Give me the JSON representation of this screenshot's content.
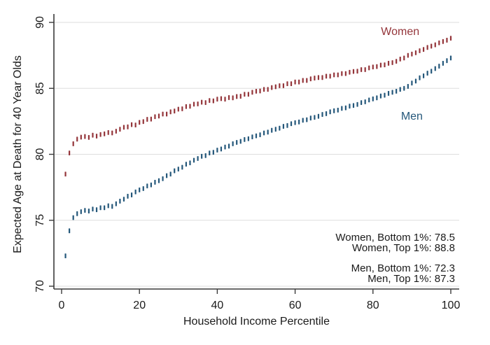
{
  "figure": {
    "background": "#ffffff"
  },
  "chart_data": {
    "type": "scatter",
    "marker_style": "vertical-dash",
    "title": "",
    "xlabel": "Household Income Percentile",
    "ylabel": "Expected Age at Death for 40 Year Olds",
    "xlim": [
      0,
      100
    ],
    "ylim": [
      70,
      90
    ],
    "x_ticks": [
      0,
      20,
      40,
      60,
      80,
      100
    ],
    "y_ticks": [
      70,
      75,
      80,
      85,
      90
    ],
    "grid": "horizontal-only",
    "legend_position": "inline-series-labels",
    "colors": {
      "women": "#94353A",
      "men": "#24577A",
      "axis": "#3a3a3a",
      "gridline": "#dedede",
      "text": "#1a1a1a"
    },
    "series": [
      {
        "name": "Women",
        "color": "#94353A",
        "label_anchor": {
          "x": 87,
          "y": 89.3
        },
        "x": [
          1,
          2,
          3,
          4,
          5,
          6,
          7,
          8,
          9,
          10,
          11,
          12,
          13,
          14,
          15,
          16,
          17,
          18,
          19,
          20,
          21,
          22,
          23,
          24,
          25,
          26,
          27,
          28,
          29,
          30,
          31,
          32,
          33,
          34,
          35,
          36,
          37,
          38,
          39,
          40,
          41,
          42,
          43,
          44,
          45,
          46,
          47,
          48,
          49,
          50,
          51,
          52,
          53,
          54,
          55,
          56,
          57,
          58,
          59,
          60,
          61,
          62,
          63,
          64,
          65,
          66,
          67,
          68,
          69,
          70,
          71,
          72,
          73,
          74,
          75,
          76,
          77,
          78,
          79,
          80,
          81,
          82,
          83,
          84,
          85,
          86,
          87,
          88,
          89,
          90,
          91,
          92,
          93,
          94,
          95,
          96,
          97,
          98,
          99,
          100
        ],
        "values": [
          78.5,
          80.1,
          80.8,
          81.15,
          81.3,
          81.35,
          81.28,
          81.45,
          81.38,
          81.5,
          81.55,
          81.65,
          81.62,
          81.75,
          81.9,
          82.05,
          82.08,
          82.25,
          82.22,
          82.42,
          82.48,
          82.65,
          82.67,
          82.85,
          82.9,
          83.05,
          83.05,
          83.22,
          83.28,
          83.42,
          83.45,
          83.62,
          83.64,
          83.8,
          83.82,
          83.95,
          83.92,
          84.08,
          84.05,
          84.18,
          84.22,
          84.18,
          84.3,
          84.28,
          84.38,
          84.4,
          84.55,
          84.55,
          84.7,
          84.78,
          84.8,
          84.92,
          84.92,
          85.06,
          85.12,
          85.2,
          85.2,
          85.35,
          85.35,
          85.48,
          85.48,
          85.6,
          85.6,
          85.72,
          85.78,
          85.82,
          85.82,
          85.92,
          85.92,
          86.02,
          86.02,
          86.12,
          86.12,
          86.22,
          86.28,
          86.3,
          86.42,
          86.42,
          86.55,
          86.62,
          86.65,
          86.76,
          86.78,
          86.9,
          86.95,
          87.05,
          87.22,
          87.3,
          87.5,
          87.6,
          87.7,
          87.85,
          87.95,
          88.1,
          88.2,
          88.3,
          88.45,
          88.55,
          88.65,
          88.8
        ]
      },
      {
        "name": "Men",
        "color": "#24577A",
        "label_anchor": {
          "x": 90,
          "y": 82.9
        },
        "x": [
          1,
          2,
          3,
          4,
          5,
          6,
          7,
          8,
          9,
          10,
          11,
          12,
          13,
          14,
          15,
          16,
          17,
          18,
          19,
          20,
          21,
          22,
          23,
          24,
          25,
          26,
          27,
          28,
          29,
          30,
          31,
          32,
          33,
          34,
          35,
          36,
          37,
          38,
          39,
          40,
          41,
          42,
          43,
          44,
          45,
          46,
          47,
          48,
          49,
          50,
          51,
          52,
          53,
          54,
          55,
          56,
          57,
          58,
          59,
          60,
          61,
          62,
          63,
          64,
          65,
          66,
          67,
          68,
          69,
          70,
          71,
          72,
          73,
          74,
          75,
          76,
          77,
          78,
          79,
          80,
          81,
          82,
          83,
          84,
          85,
          86,
          87,
          88,
          89,
          90,
          91,
          92,
          93,
          94,
          95,
          96,
          97,
          98,
          99,
          100
        ],
        "values": [
          72.3,
          74.2,
          75.2,
          75.5,
          75.65,
          75.75,
          75.7,
          75.85,
          75.8,
          75.95,
          75.95,
          76.1,
          76.05,
          76.25,
          76.45,
          76.6,
          76.82,
          76.92,
          77.15,
          77.3,
          77.4,
          77.6,
          77.68,
          77.88,
          78.0,
          78.15,
          78.38,
          78.5,
          78.75,
          78.88,
          79.02,
          79.25,
          79.35,
          79.55,
          79.68,
          79.85,
          79.9,
          80.1,
          80.15,
          80.32,
          80.4,
          80.55,
          80.62,
          80.8,
          80.9,
          80.98,
          81.12,
          81.18,
          81.32,
          81.4,
          81.48,
          81.62,
          81.68,
          81.82,
          81.9,
          81.98,
          82.12,
          82.18,
          82.32,
          82.4,
          82.45,
          82.58,
          82.62,
          82.75,
          82.8,
          82.88,
          83.02,
          83.08,
          83.22,
          83.3,
          83.35,
          83.48,
          83.52,
          83.65,
          83.7,
          83.78,
          83.92,
          83.98,
          84.12,
          84.2,
          84.28,
          84.42,
          84.48,
          84.62,
          84.7,
          84.78,
          84.92,
          85.0,
          85.15,
          85.4,
          85.55,
          85.8,
          85.95,
          86.15,
          86.3,
          86.5,
          86.68,
          86.9,
          87.1,
          87.3
        ]
      }
    ],
    "annotations": [
      {
        "text": "Women, Bottom 1%: 78.5"
      },
      {
        "text": "Women, Top 1%: 88.8"
      },
      {
        "text": "Men, Bottom 1%: 72.3"
      },
      {
        "text": "Men, Top 1%: 87.3"
      }
    ]
  }
}
